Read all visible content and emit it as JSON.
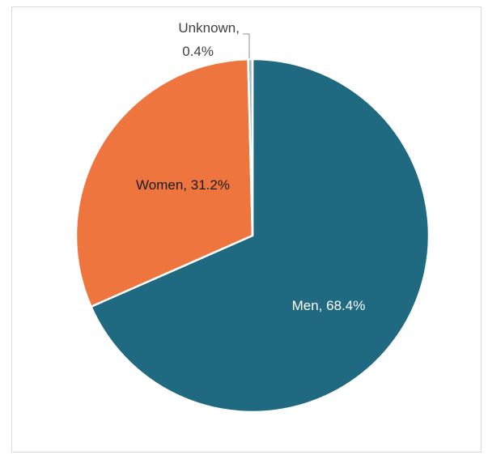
{
  "chart_data": {
    "type": "pie",
    "title": "",
    "slices": [
      {
        "label": "Men",
        "value": 68.4,
        "display": "Men, 68.4%",
        "color": "#1f6a80"
      },
      {
        "label": "Women",
        "value": 31.2,
        "display": "Women, 31.2%",
        "color": "#ee763e"
      },
      {
        "label": "Unknown",
        "value": 0.4,
        "display_line1": "Unknown,",
        "display_line2": "0.4%",
        "color": "#a5b8c2"
      }
    ],
    "start_angle_deg": 0,
    "direction": "clockwise",
    "legend": "none"
  }
}
